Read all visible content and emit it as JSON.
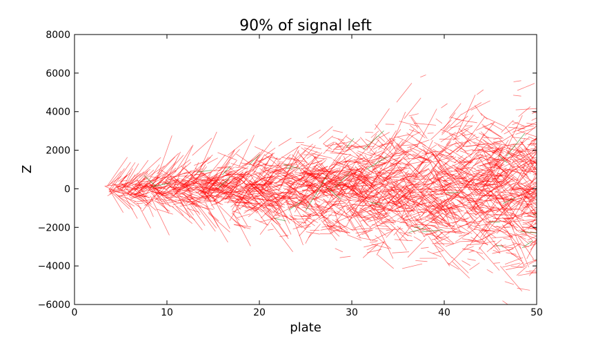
{
  "chart_data": {
    "type": "line",
    "title": "90% of signal left",
    "xlabel": "plate",
    "ylabel": "Z",
    "xlim": [
      0,
      50
    ],
    "ylim": [
      -6000,
      8000
    ],
    "xticks": [
      0,
      10,
      20,
      30,
      40,
      50
    ],
    "yticks": [
      -6000,
      -4000,
      -2000,
      0,
      2000,
      4000,
      6000,
      8000
    ],
    "ytick_labels": [
      "−6000",
      "−4000",
      "−2000",
      "0",
      "2000",
      "4000",
      "6000",
      "8000"
    ],
    "grid": false,
    "legend": "none",
    "series": [
      {
        "color": "#ff0000",
        "x_range": [
          3,
          50
        ],
        "envelope_start": 400,
        "envelope_end": 4500,
        "segments": 2600
      },
      {
        "color": "#008000",
        "x_range": [
          3,
          50
        ],
        "envelope_start": 400,
        "envelope_end": 4500,
        "segments": 30
      }
    ]
  }
}
